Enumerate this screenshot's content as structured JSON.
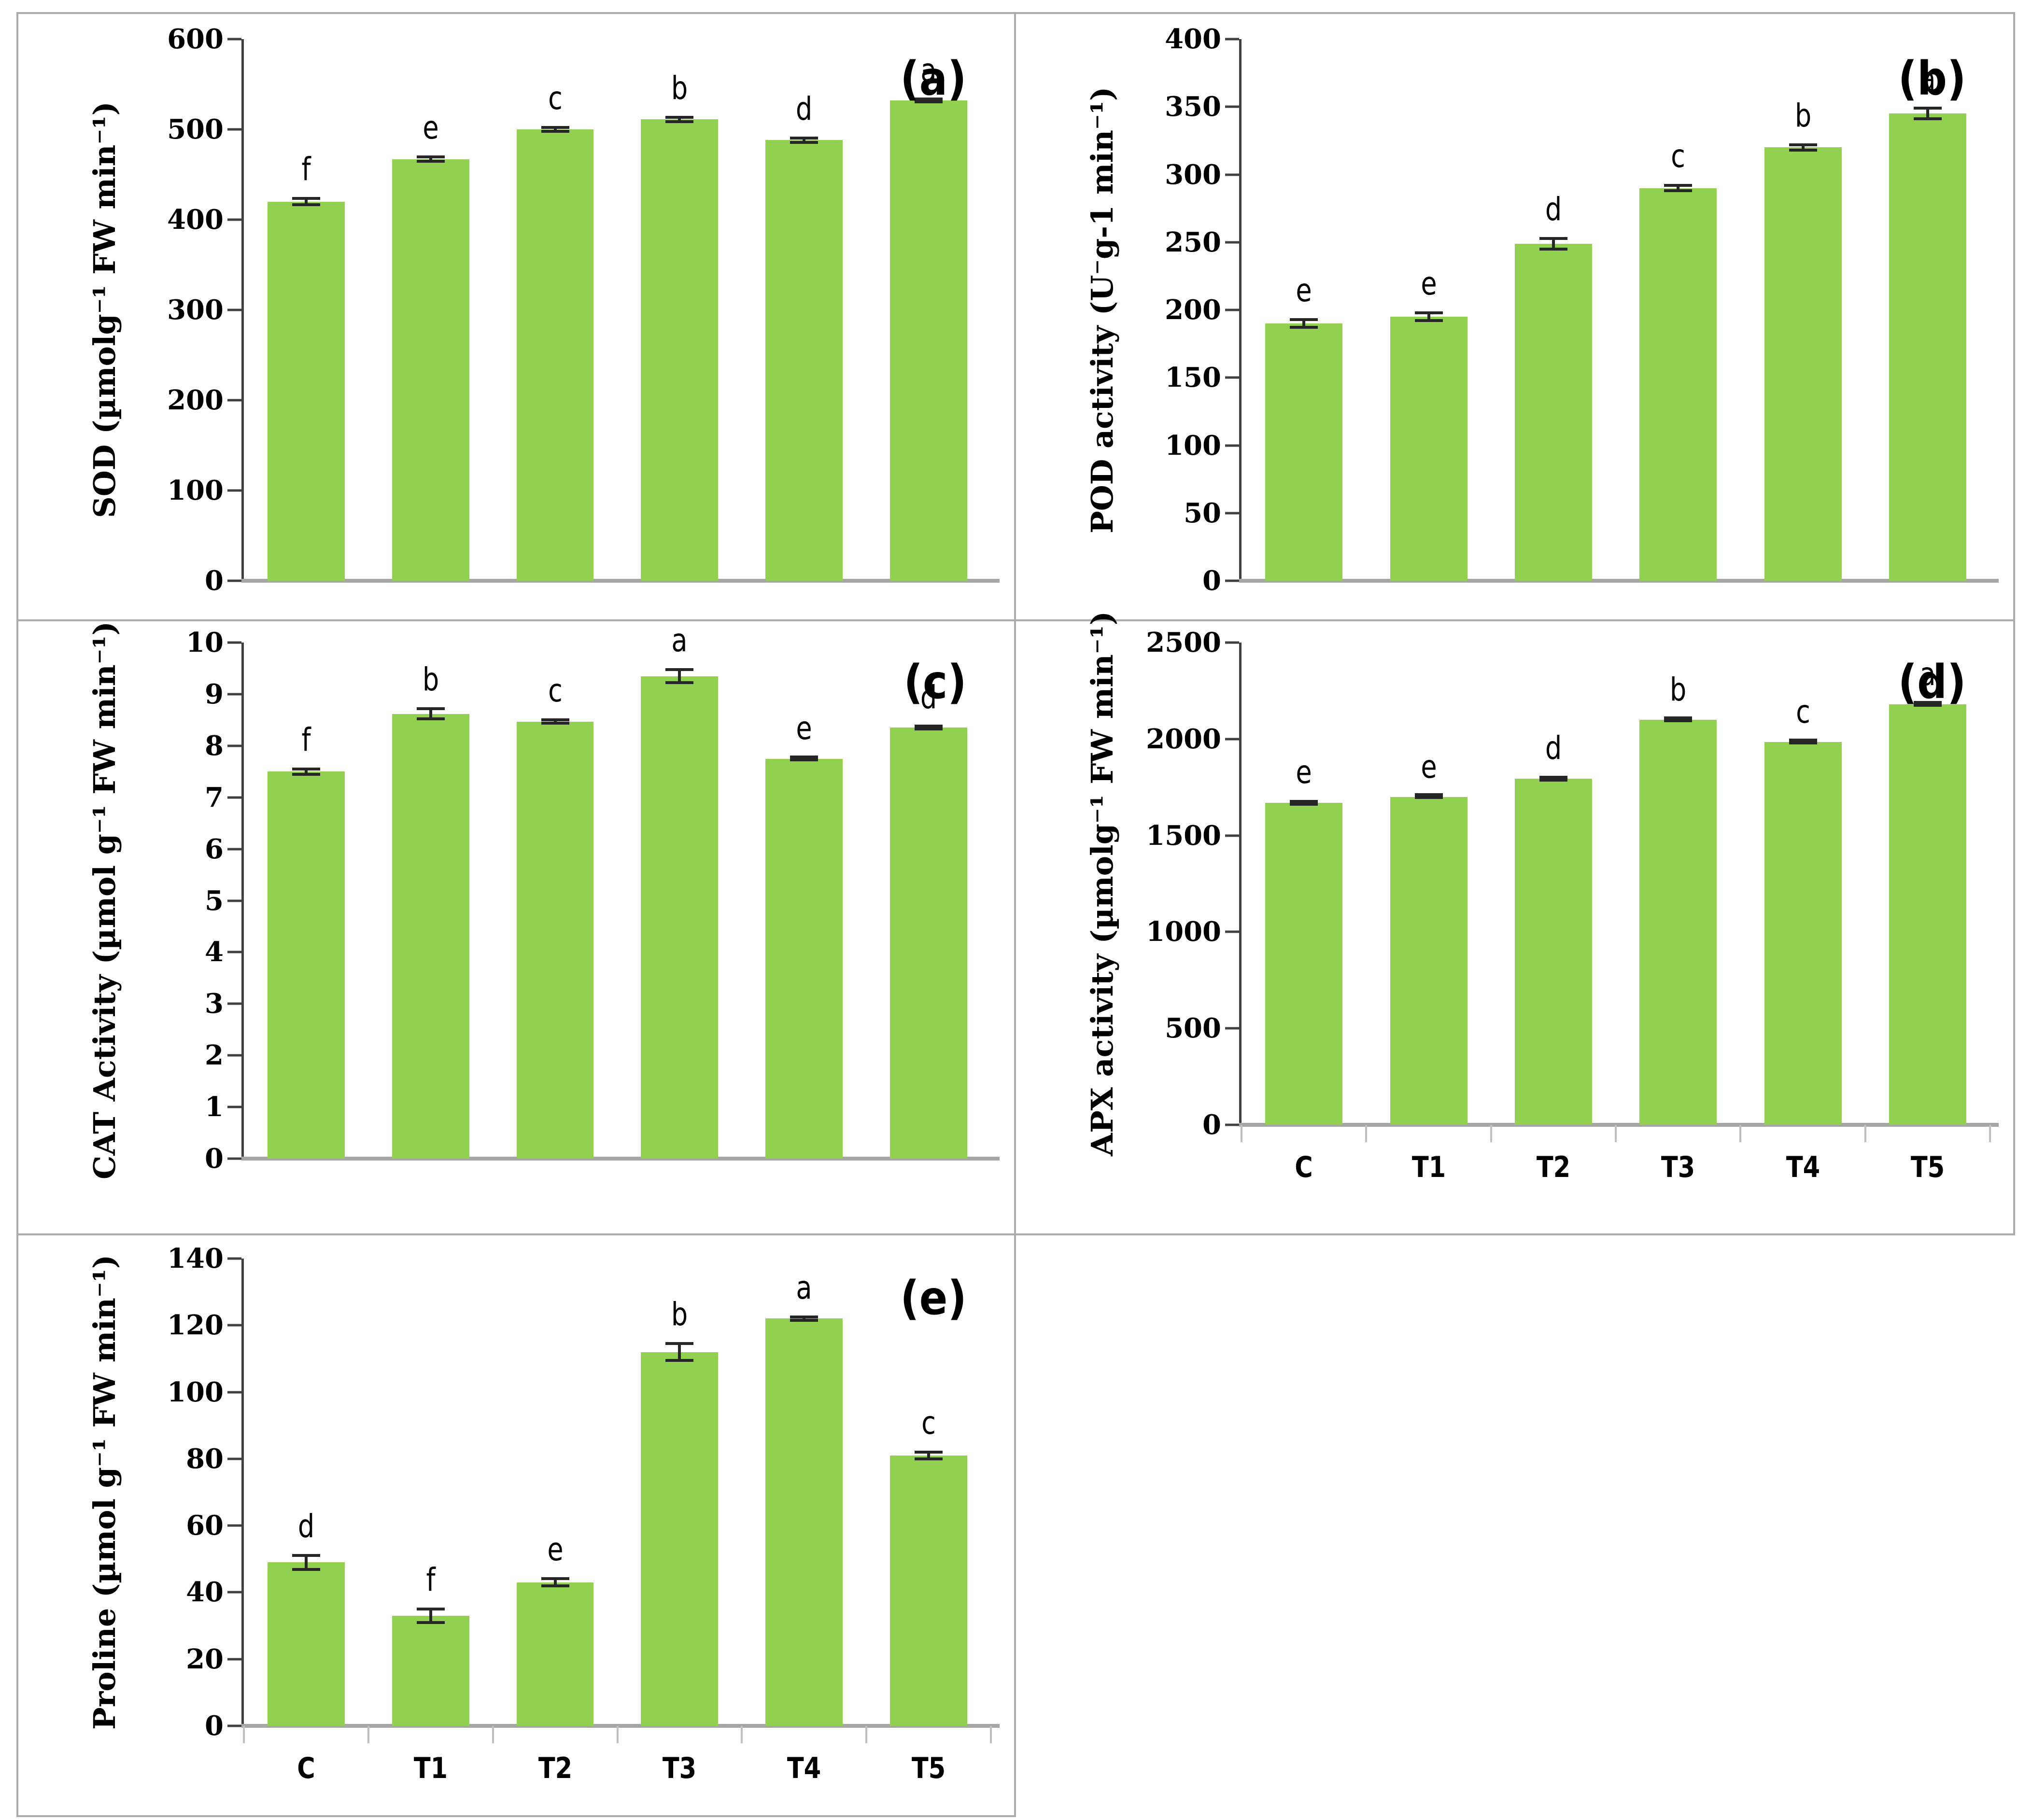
{
  "figure": {
    "background": "#FFFFFF",
    "panel_border_color": "#ACACAC",
    "bar_color": "#92D050",
    "axis_color": "#404040",
    "baseline_color": "#A6A6A6",
    "error_bar_color": "#262626",
    "text_color": "#000000"
  },
  "chart_data": [
    {
      "id": "a",
      "panel_label": "(a)",
      "type": "bar",
      "title": "",
      "ylabel": "SOD (µmolg⁻¹ FW min⁻¹)",
      "xlabel": "",
      "categories": [
        "C",
        "T1",
        "T2",
        "T3",
        "T4",
        "T5"
      ],
      "values": [
        420,
        467,
        500,
        511,
        488,
        532
      ],
      "errors": [
        5,
        4,
        4,
        4,
        4,
        3
      ],
      "sig_letters": [
        "f",
        "e",
        "c",
        "b",
        "d",
        "a"
      ],
      "ylim": [
        0,
        600
      ],
      "ytick_step": 100,
      "show_x_labels": false,
      "grid": false,
      "legend": "none"
    },
    {
      "id": "b",
      "panel_label": "(b)",
      "type": "bar",
      "title": "",
      "ylabel": "POD activity (U⁻g-1 min⁻¹)",
      "xlabel": "",
      "categories": [
        "C",
        "T1",
        "T2",
        "T3",
        "T4",
        "T5"
      ],
      "values": [
        190,
        195,
        249,
        290,
        320,
        345
      ],
      "errors": [
        4,
        4,
        5,
        3,
        3,
        5
      ],
      "sig_letters": [
        "e",
        "e",
        "d",
        "c",
        "b",
        "a"
      ],
      "ylim": [
        0,
        400
      ],
      "ytick_step": 50,
      "show_x_labels": false,
      "grid": false,
      "legend": "none"
    },
    {
      "id": "c",
      "panel_label": "(c)",
      "type": "bar",
      "title": "",
      "ylabel": "CAT Activity (µmol g⁻¹ FW min⁻¹)",
      "xlabel": "",
      "categories": [
        "C",
        "T1",
        "T2",
        "T3",
        "T4",
        "T5"
      ],
      "values": [
        7.5,
        8.62,
        8.47,
        9.35,
        7.75,
        8.35
      ],
      "errors": [
        0.08,
        0.13,
        0.06,
        0.15,
        0.05,
        0.05
      ],
      "sig_letters": [
        "f",
        "b",
        "c",
        "a",
        "e",
        "d"
      ],
      "ylim": [
        0,
        10
      ],
      "ytick_step": 1,
      "show_x_labels": false,
      "grid": false,
      "legend": "none"
    },
    {
      "id": "d",
      "panel_label": "(d)",
      "type": "bar",
      "title": "",
      "ylabel": "APX activity (µmolg⁻¹ FW min⁻¹)",
      "xlabel": "",
      "categories": [
        "C",
        "T1",
        "T2",
        "T3",
        "T4",
        "T5"
      ],
      "values": [
        1670,
        1700,
        1795,
        2100,
        1985,
        2180
      ],
      "errors": [
        15,
        12,
        15,
        12,
        12,
        12
      ],
      "sig_letters": [
        "e",
        "e",
        "d",
        "b",
        "c",
        "a"
      ],
      "ylim": [
        0,
        2500
      ],
      "ytick_step": 500,
      "show_x_labels": true,
      "grid": false,
      "legend": "none"
    },
    {
      "id": "e",
      "panel_label": "(e)",
      "type": "bar",
      "title": "",
      "ylabel": "Proline (µmol g⁻¹ FW min⁻¹)",
      "xlabel": "",
      "categories": [
        "C",
        "T1",
        "T2",
        "T3",
        "T4",
        "T5"
      ],
      "values": [
        49,
        33,
        43,
        112,
        122,
        81
      ],
      "errors": [
        2.5,
        2.5,
        1.5,
        3,
        1,
        1.5
      ],
      "sig_letters": [
        "d",
        "f",
        "e",
        "b",
        "a",
        "c"
      ],
      "ylim": [
        0,
        140
      ],
      "ytick_step": 20,
      "show_x_labels": true,
      "grid": false,
      "legend": "none"
    }
  ]
}
